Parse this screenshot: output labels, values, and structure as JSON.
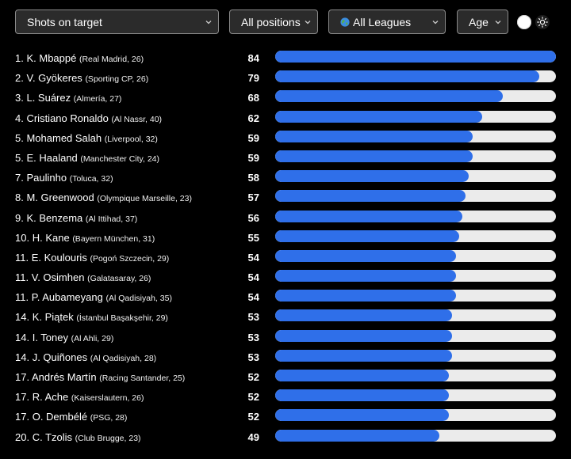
{
  "filters": {
    "stat": "Shots on target",
    "position": "All positions",
    "league": "All Leagues",
    "age": "Age"
  },
  "colors": {
    "bar": "#2f6fe9",
    "track": "#ebebeb",
    "background": "#000000"
  },
  "chart_data": {
    "type": "bar",
    "orientation": "horizontal",
    "xlim": [
      0,
      84
    ],
    "categories": [
      "K. Mbappé",
      "V. Gyökeres",
      "L. Suárez",
      "Cristiano Ronaldo",
      "Mohamed Salah",
      "E. Haaland",
      "Paulinho",
      "M. Greenwood",
      "K. Benzema",
      "H. Kane",
      "E. Koulouris",
      "V. Osimhen",
      "P. Aubameyang",
      "K. Piątek",
      "I. Toney",
      "J. Quiñones",
      "Andrés Martín",
      "R. Ache",
      "O. Dembélé",
      "C. Tzolis"
    ],
    "values": [
      84,
      79,
      68,
      62,
      59,
      59,
      58,
      57,
      56,
      55,
      54,
      54,
      54,
      53,
      53,
      53,
      52,
      52,
      52,
      49
    ],
    "rows": [
      {
        "rank": "1.",
        "name": "K. Mbappé",
        "meta": "(Real Madrid, 26)",
        "value": 84
      },
      {
        "rank": "2.",
        "name": "V. Gyökeres",
        "meta": "(Sporting CP, 26)",
        "value": 79
      },
      {
        "rank": "3.",
        "name": "L. Suárez",
        "meta": "(Almería, 27)",
        "value": 68
      },
      {
        "rank": "4.",
        "name": "Cristiano Ronaldo",
        "meta": "(Al Nassr, 40)",
        "value": 62
      },
      {
        "rank": "5.",
        "name": "Mohamed Salah",
        "meta": "(Liverpool, 32)",
        "value": 59
      },
      {
        "rank": "5.",
        "name": "E. Haaland",
        "meta": "(Manchester City, 24)",
        "value": 59
      },
      {
        "rank": "7.",
        "name": "Paulinho",
        "meta": "(Toluca, 32)",
        "value": 58
      },
      {
        "rank": "8.",
        "name": "M. Greenwood",
        "meta": "(Olympique Marseille, 23)",
        "value": 57
      },
      {
        "rank": "9.",
        "name": "K. Benzema",
        "meta": "(Al Ittihad, 37)",
        "value": 56
      },
      {
        "rank": "10.",
        "name": "H. Kane",
        "meta": "(Bayern München, 31)",
        "value": 55
      },
      {
        "rank": "11.",
        "name": "E. Koulouris",
        "meta": "(Pogoń Szczecin, 29)",
        "value": 54
      },
      {
        "rank": "11.",
        "name": "V. Osimhen",
        "meta": "(Galatasaray, 26)",
        "value": 54
      },
      {
        "rank": "11.",
        "name": "P. Aubameyang",
        "meta": "(Al Qadisiyah, 35)",
        "value": 54
      },
      {
        "rank": "14.",
        "name": "K. Piątek",
        "meta": "(İstanbul Başakşehir, 29)",
        "value": 53
      },
      {
        "rank": "14.",
        "name": "I. Toney",
        "meta": "(Al Ahli, 29)",
        "value": 53
      },
      {
        "rank": "14.",
        "name": "J. Quiñones",
        "meta": "(Al Qadisiyah, 28)",
        "value": 53
      },
      {
        "rank": "17.",
        "name": "Andrés Martín",
        "meta": "(Racing Santander, 25)",
        "value": 52
      },
      {
        "rank": "17.",
        "name": "R. Ache",
        "meta": "(Kaiserslautern, 26)",
        "value": 52
      },
      {
        "rank": "17.",
        "name": "O. Dembélé",
        "meta": "(PSG, 28)",
        "value": 52
      },
      {
        "rank": "20.",
        "name": "C. Tzolis",
        "meta": "(Club Brugge, 23)",
        "value": 49
      }
    ]
  }
}
